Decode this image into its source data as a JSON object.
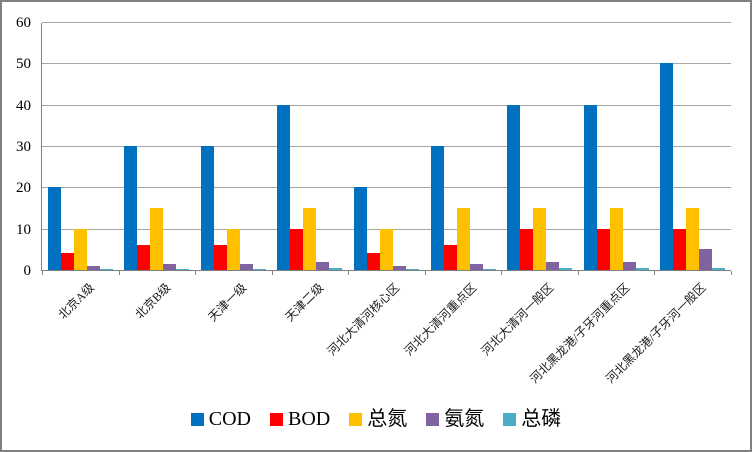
{
  "chart_data": {
    "type": "bar",
    "title": "",
    "xlabel": "",
    "ylabel": "",
    "ylim": [
      0,
      60
    ],
    "yticks": [
      0,
      10,
      20,
      30,
      40,
      50,
      60
    ],
    "grid": true,
    "legend_position": "bottom",
    "categories": [
      "北京A级",
      "北京B级",
      "天津一级",
      "天津二级",
      "河北大清河核心区",
      "河北大清河重点区",
      "河北大清河一般区",
      "河北黑龙港/子牙河重点区",
      "河北黑龙港/子牙河一般区"
    ],
    "series": [
      {
        "name": "COD",
        "color": "#0070C0",
        "values": [
          20,
          30,
          30,
          40,
          20,
          30,
          40,
          40,
          50
        ]
      },
      {
        "name": "BOD",
        "color": "#FE0000",
        "values": [
          4,
          6,
          6,
          10,
          4,
          6,
          10,
          10,
          10
        ]
      },
      {
        "name": "总氮",
        "color": "#FFC000",
        "values": [
          10,
          15,
          10,
          15,
          10,
          15,
          15,
          15,
          15
        ]
      },
      {
        "name": "氨氮",
        "color": "#8064A2",
        "values": [
          1,
          1.5,
          1.5,
          2,
          1,
          1.5,
          2,
          2,
          5
        ]
      },
      {
        "name": "总磷",
        "color": "#4BACC6",
        "values": [
          0.3,
          0.3,
          0.3,
          0.5,
          0.3,
          0.3,
          0.5,
          0.5,
          0.5
        ]
      }
    ]
  },
  "colors": {
    "frame_border": "#7F7F7F",
    "gridline": "#A6A6A6",
    "axis": "#808080",
    "text": "#000000",
    "background": "#FFFFFF"
  }
}
